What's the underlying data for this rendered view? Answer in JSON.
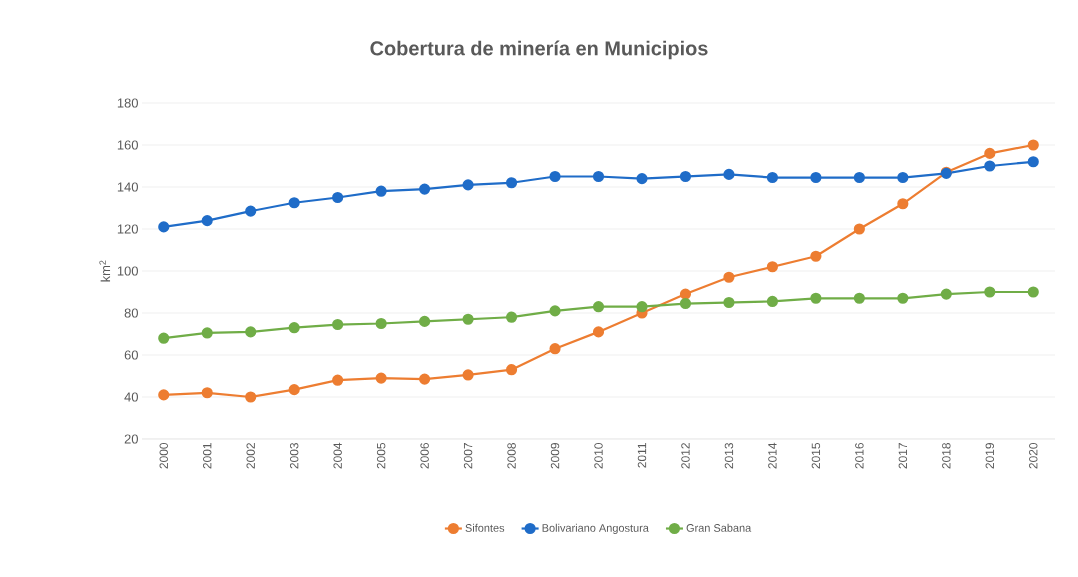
{
  "chart_data": {
    "type": "line",
    "title": "Cobertura de minería en Municipios",
    "ylabel": "km$^{2}$",
    "categories": [
      "2000",
      "2001",
      "2002",
      "2003",
      "2004",
      "2005",
      "2006",
      "2007",
      "2008",
      "2009",
      "2010",
      "2011",
      "2012",
      "2013",
      "2014",
      "2015",
      "2016",
      "2017",
      "2018",
      "2019",
      "2020"
    ],
    "series": [
      {
        "name": "Sifontes",
        "color": "#ed7d31",
        "values": [
          41,
          42,
          40,
          43.5,
          48,
          49,
          48.5,
          50.5,
          53,
          63,
          71,
          80,
          89,
          97,
          102,
          107,
          120,
          132,
          147,
          156,
          160
        ]
      },
      {
        "name": "Bolivariano Angostura",
        "color": "#1f6cc8",
        "values": [
          121,
          124,
          128.5,
          132.5,
          135,
          138,
          139,
          141,
          142,
          145,
          145,
          144,
          145,
          146,
          144.5,
          144.5,
          144.5,
          144.5,
          146.5,
          150,
          152
        ]
      },
      {
        "name": "Gran Sabana",
        "color": "#70ad47",
        "values": [
          68,
          70.5,
          71,
          73,
          74.5,
          75,
          76,
          77,
          78,
          81,
          83,
          83,
          84.5,
          85,
          85.5,
          87,
          87,
          87,
          89,
          90,
          90
        ]
      }
    ],
    "ylim": [
      20,
      180
    ],
    "yticks": [
      20,
      40,
      60,
      80,
      100,
      120,
      140,
      160,
      180
    ],
    "grid": "y",
    "legend": "bottom",
    "marker": "circle",
    "line_style": "solid"
  }
}
